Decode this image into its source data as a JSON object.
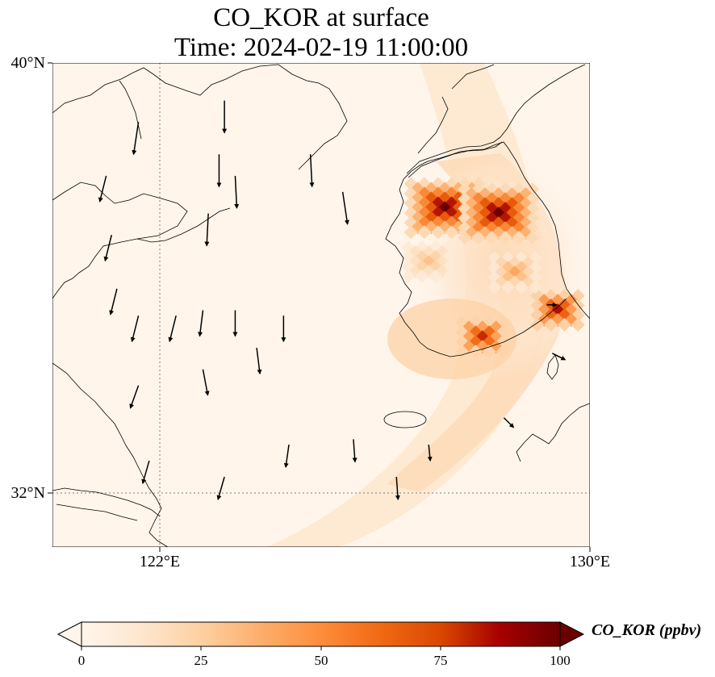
{
  "title": {
    "line1": "CO_KOR at surface",
    "line2": "Time: 2024-02-19 11:00:00"
  },
  "axes": {
    "lat_labels": [
      "40°N",
      "32°N"
    ],
    "lon_labels": [
      "122°E",
      "130°E"
    ],
    "lat_range": [
      30.9,
      40.0
    ],
    "lon_range": [
      120.0,
      130.0
    ],
    "gridlines": "dotted at 122°E and 32°N"
  },
  "colorbar": {
    "label": "CO_KOR (ppbv)",
    "ticks": [
      "0",
      "25",
      "50",
      "75",
      "100"
    ],
    "range": [
      0,
      100
    ],
    "extend": "both",
    "colormap": [
      "#fff5eb",
      "#fee6ce",
      "#fdd0a2",
      "#fdae6b",
      "#fd8d3c",
      "#f16913",
      "#d94801",
      "#a60000",
      "#6b0000"
    ]
  },
  "colors": {
    "coastline": "#000000",
    "background": "#fff5eb",
    "gridline": "#808080"
  },
  "chart_data": {
    "type": "heatmap",
    "variable": "CO_KOR",
    "units": "ppbv",
    "lat_range": [
      30.9,
      40.0
    ],
    "lon_range": [
      120.0,
      130.0
    ],
    "hotspots": [
      {
        "lon": 127.3,
        "lat": 37.3,
        "value": 100
      },
      {
        "lon": 128.3,
        "lat": 37.2,
        "value": 100
      },
      {
        "lon": 129.4,
        "lat": 35.4,
        "value": 85
      },
      {
        "lon": 128.0,
        "lat": 34.9,
        "value": 80
      },
      {
        "lon": 128.6,
        "lat": 36.1,
        "value": 40
      },
      {
        "lon": 127.0,
        "lat": 36.3,
        "value": 30
      }
    ],
    "plume": {
      "description_values": [
        5,
        20
      ],
      "peak_background": 20
    },
    "wind_vectors": [
      {
        "lon": 121.6,
        "lat": 38.9,
        "u": -0.3,
        "v": -2.0
      },
      {
        "lon": 123.2,
        "lat": 39.3,
        "u": 0.0,
        "v": -2.0
      },
      {
        "lon": 123.1,
        "lat": 38.3,
        "u": 0.0,
        "v": -2.0
      },
      {
        "lon": 122.9,
        "lat": 37.2,
        "u": -0.1,
        "v": -2.0
      },
      {
        "lon": 123.4,
        "lat": 37.9,
        "u": 0.1,
        "v": -2.0
      },
      {
        "lon": 124.8,
        "lat": 38.3,
        "u": 0.1,
        "v": -2.0
      },
      {
        "lon": 125.4,
        "lat": 37.6,
        "u": 0.3,
        "v": -2.0
      },
      {
        "lon": 121.0,
        "lat": 37.9,
        "u": -0.4,
        "v": -1.6
      },
      {
        "lon": 121.1,
        "lat": 36.8,
        "u": -0.4,
        "v": -1.6
      },
      {
        "lon": 121.2,
        "lat": 35.8,
        "u": -0.4,
        "v": -1.6
      },
      {
        "lon": 121.6,
        "lat": 35.3,
        "u": -0.4,
        "v": -1.6
      },
      {
        "lon": 122.3,
        "lat": 35.3,
        "u": -0.4,
        "v": -1.6
      },
      {
        "lon": 122.8,
        "lat": 35.4,
        "u": -0.2,
        "v": -1.6
      },
      {
        "lon": 123.4,
        "lat": 35.4,
        "u": 0.0,
        "v": -1.6
      },
      {
        "lon": 124.3,
        "lat": 35.3,
        "u": 0.0,
        "v": -1.6
      },
      {
        "lon": 123.8,
        "lat": 34.7,
        "u": 0.2,
        "v": -1.6
      },
      {
        "lon": 122.8,
        "lat": 34.3,
        "u": 0.3,
        "v": -1.6
      },
      {
        "lon": 121.6,
        "lat": 34.0,
        "u": -0.5,
        "v": -1.4
      },
      {
        "lon": 121.8,
        "lat": 32.6,
        "u": -0.4,
        "v": -1.4
      },
      {
        "lon": 123.2,
        "lat": 32.3,
        "u": -0.4,
        "v": -1.4
      },
      {
        "lon": 124.4,
        "lat": 32.9,
        "u": -0.2,
        "v": -1.4
      },
      {
        "lon": 125.6,
        "lat": 33.0,
        "u": 0.1,
        "v": -1.4
      },
      {
        "lon": 126.4,
        "lat": 32.3,
        "u": 0.1,
        "v": -1.4
      },
      {
        "lon": 127.0,
        "lat": 32.9,
        "u": 0.1,
        "v": -1.0
      },
      {
        "lon": 128.4,
        "lat": 33.4,
        "u": 0.6,
        "v": -0.6
      },
      {
        "lon": 129.3,
        "lat": 34.6,
        "u": 0.8,
        "v": -0.4
      },
      {
        "lon": 129.2,
        "lat": 35.5,
        "u": 0.6,
        "v": 0.0
      }
    ]
  }
}
